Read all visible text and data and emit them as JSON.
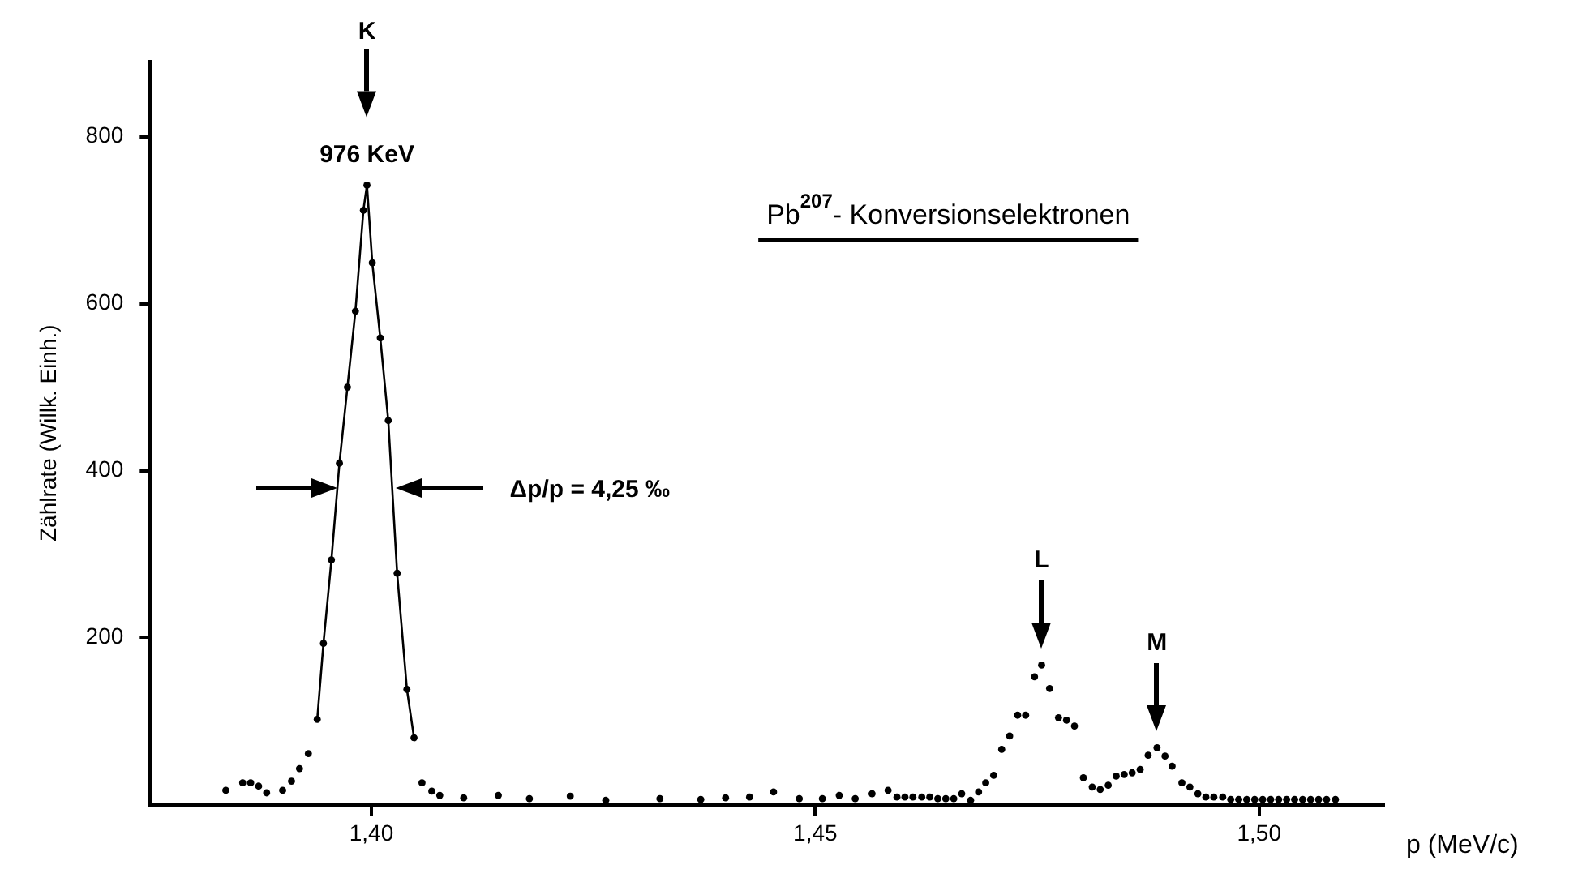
{
  "chart_data": {
    "type": "scatter",
    "title": "Pb$^{207}$- Konversionselektronen",
    "xlabel": "p (MeV/c)",
    "ylabel": "Zählrate (Willk. Einh.)",
    "xlim": [
      1.375,
      1.514
    ],
    "xticks": [
      {
        "value": 1.4,
        "label": "1,40"
      },
      {
        "value": 1.45,
        "label": "1,45"
      },
      {
        "value": 1.5,
        "label": "1,50"
      }
    ],
    "ylim": [
      0,
      890
    ],
    "yticks": [
      200,
      400,
      600,
      800
    ],
    "grid": false,
    "legend": false,
    "marker": "circle",
    "line_style": "solid",
    "annotations": [
      "K",
      {
        "text": "976 KeV",
        "x": 1.3995,
        "y": 742
      },
      "Δp/p = 4,25 ‰",
      "L",
      "M"
    ],
    "series": [
      {
        "type": "line",
        "color": "#000000",
        "x": [
          1.3939,
          1.3946,
          1.3955,
          1.3964,
          1.3973,
          1.3982,
          1.3991,
          1.3995,
          1.4001,
          1.401,
          1.4019,
          1.4029,
          1.404,
          1.4048
        ],
        "values": [
          102,
          193,
          293,
          409,
          500,
          591,
          712,
          742,
          649,
          559,
          460,
          277,
          138,
          80
        ]
      },
      {
        "type": "scatter",
        "color": "#000000",
        "x": [
          1.3836,
          1.3855,
          1.3864,
          1.3873,
          1.3882,
          1.39,
          1.391,
          1.3919,
          1.3929,
          1.4057,
          1.4068,
          1.4077,
          1.4104,
          1.4143,
          1.4178,
          1.4224,
          1.4264,
          1.4325,
          1.4371,
          1.4399,
          1.4426,
          1.4453,
          1.4482,
          1.4508,
          1.4527,
          1.4545,
          1.4564,
          1.4582,
          1.4592,
          1.4601,
          1.461,
          1.462,
          1.4629,
          1.4638,
          1.4647,
          1.4656,
          1.4665,
          1.4675,
          1.4684,
          1.4692,
          1.4701,
          1.471,
          1.4719,
          1.4728,
          1.4737,
          1.4747,
          1.4755,
          1.4764,
          1.4774,
          1.4783,
          1.4792,
          1.4802,
          1.4812,
          1.4821,
          1.483,
          1.4839,
          1.4848,
          1.4857,
          1.4866,
          1.4875,
          1.4885,
          1.4894,
          1.4902,
          1.4913,
          1.4922,
          1.4931,
          1.494,
          1.4949,
          1.4959,
          1.4968,
          1.4977,
          1.4986,
          1.4995,
          1.5004,
          1.5013,
          1.5022,
          1.5031,
          1.504,
          1.5049,
          1.5058,
          1.5067,
          1.5076,
          1.5086
        ],
        "values": [
          17,
          26,
          26,
          22,
          14,
          17,
          28,
          43,
          61,
          26,
          16,
          11,
          8,
          11,
          7,
          10,
          5,
          7,
          6,
          8,
          9,
          15,
          7,
          7,
          11,
          7,
          13,
          17,
          9,
          9,
          9,
          9,
          9,
          7,
          7,
          7,
          13,
          5,
          15,
          26,
          35,
          66,
          82,
          107,
          107,
          153,
          167,
          139,
          104,
          101,
          94,
          32,
          21,
          18,
          23,
          34,
          36,
          38,
          42,
          59,
          68,
          58,
          46,
          26,
          21,
          13,
          9,
          9,
          9,
          6,
          6,
          6,
          6,
          6,
          6,
          6,
          6,
          6,
          6,
          6,
          6,
          6,
          6
        ]
      }
    ]
  }
}
